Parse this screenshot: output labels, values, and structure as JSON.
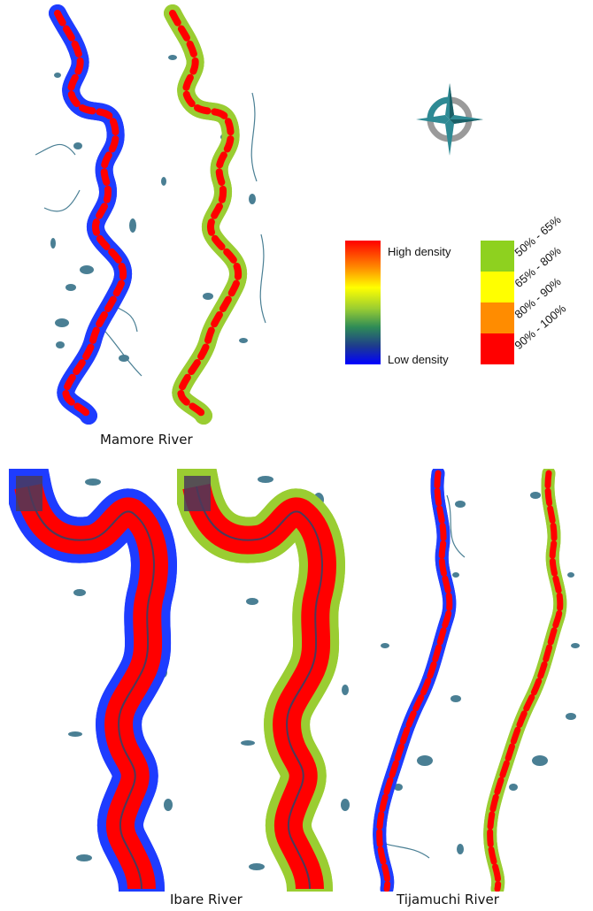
{
  "captions": {
    "mamore": "Mamore River",
    "ibare": "Ibare River",
    "tijamuchi": "Tijamuchi River"
  },
  "legend": {
    "high": "High density",
    "low": "Low density",
    "gradient_colors": [
      "#ff0000",
      "#ff8c00",
      "#ffff00",
      "#9acd32",
      "#2e8b57",
      "#1e3c8c",
      "#0000ff"
    ],
    "classes": [
      {
        "label": "50% - 65%",
        "color": "#8ed11f"
      },
      {
        "label": "65% - 80%",
        "color": "#ffff00"
      },
      {
        "label": "80% - 90%",
        "color": "#ff8c00"
      },
      {
        "label": "90% - 100%",
        "color": "#ff0000"
      }
    ]
  },
  "colors": {
    "water": "#4a7f94",
    "density_outline_left": "#1e3cff",
    "density_glow_left": "#40e0f0",
    "density_outline_right": "#9acd32",
    "density_mid_right": "#ffff00",
    "density_core": "#ff0000",
    "compass_teal": "#2e8a94",
    "compass_gray": "#9a9a9a"
  }
}
